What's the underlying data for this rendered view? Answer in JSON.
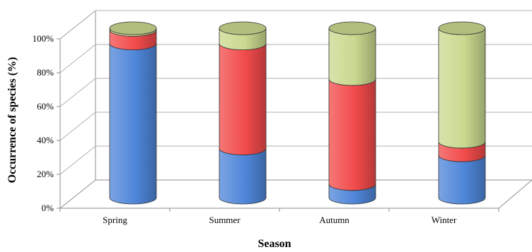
{
  "chart_data": {
    "type": "bar",
    "stacked": true,
    "style": "3d-cylinder",
    "xlabel": "Season",
    "ylabel": "Occurrence of species (%)",
    "categories": [
      "Spring",
      "Summer",
      "Autumn",
      "Winter"
    ],
    "ylim": [
      0,
      100
    ],
    "yticks": [
      "0%",
      "20%",
      "40%",
      "60%",
      "80%",
      "100%"
    ],
    "grid": true,
    "legend": "none",
    "series": [
      {
        "color": "#4f86d9",
        "values": [
          91,
          29,
          8,
          25
        ]
      },
      {
        "color": "#f24b4b",
        "values": [
          8,
          62,
          62,
          8
        ]
      },
      {
        "color": "#c9d98f",
        "values": [
          1,
          9,
          30,
          67
        ]
      }
    ]
  }
}
